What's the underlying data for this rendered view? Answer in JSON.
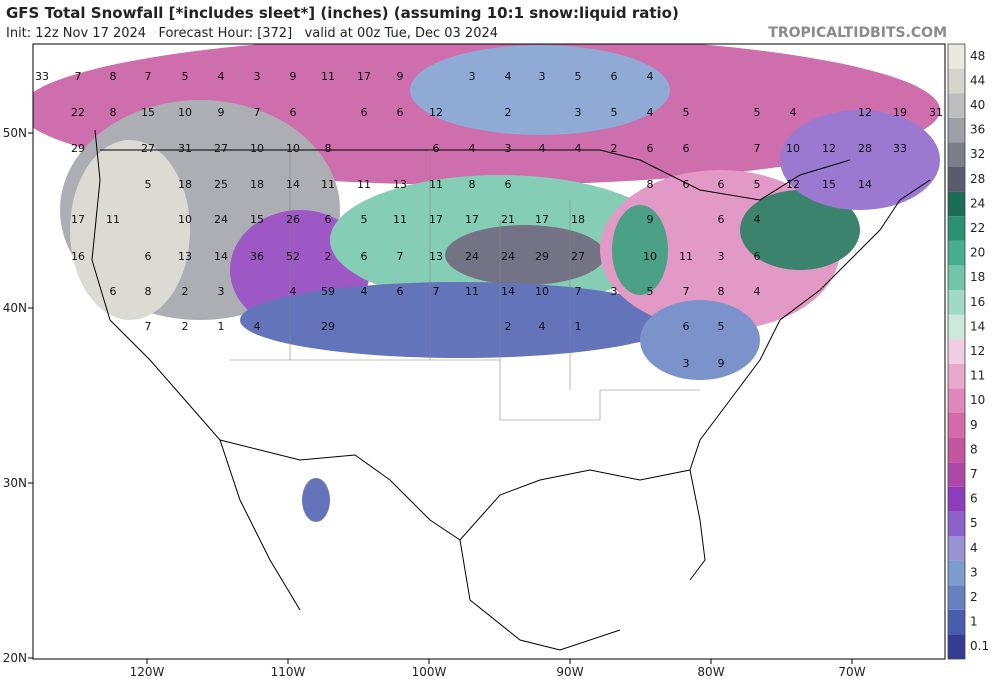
{
  "title": "GFS Total Snowfall [*includes sleet*] (inches) (assuming 10:1 snow:liquid ratio)",
  "subtitle": "Init: 12z Nov 17 2024   Forecast Hour: [372]   valid at 00z Tue, Dec 03 2024",
  "brand": "TROPICALTIDBITS.COM",
  "lat_ticks": [
    {
      "value": 50,
      "label": "50N"
    },
    {
      "value": 40,
      "label": "40N"
    },
    {
      "value": 30,
      "label": "30N"
    },
    {
      "value": 20,
      "label": "20N"
    }
  ],
  "lon_ticks": [
    {
      "value": -120,
      "label": "120W"
    },
    {
      "value": -110,
      "label": "110W"
    },
    {
      "value": -100,
      "label": "100W"
    },
    {
      "value": -90,
      "label": "90W"
    },
    {
      "value": -80,
      "label": "80W"
    },
    {
      "value": -70,
      "label": "70W"
    }
  ],
  "colorbar": {
    "levels": [
      0.1,
      1,
      2,
      3,
      4,
      5,
      6,
      7,
      8,
      9,
      10,
      11,
      12,
      14,
      16,
      18,
      20,
      22,
      24,
      28,
      32,
      36,
      40,
      44,
      48
    ],
    "colors": [
      "#343c94",
      "#4a5cae",
      "#6680c2",
      "#7d9ccf",
      "#9a92d2",
      "#8b62c9",
      "#8d3cbd",
      "#ad48a8",
      "#c6559f",
      "#d46aa9",
      "#df88bb",
      "#e8a8cc",
      "#f1cde1",
      "#cbeadc",
      "#a0d9c5",
      "#72c5a9",
      "#46ae8f",
      "#2b9171",
      "#1b6e55",
      "#5c5a70",
      "#7e7e8b",
      "#9f9fa7",
      "#bdbdc0",
      "#d5d5cd",
      "#e9e9dd"
    ]
  },
  "map_labels": [
    33,
    7,
    8,
    7,
    5,
    4,
    3,
    9,
    11,
    17,
    9,
    3,
    4,
    3,
    5,
    6,
    4,
    22,
    8,
    15,
    10,
    9,
    7,
    6,
    6,
    6,
    12,
    2,
    3,
    5,
    4,
    5,
    5,
    4,
    12,
    19,
    31,
    29,
    27,
    31,
    27,
    10,
    10,
    8,
    6,
    4,
    3,
    4,
    4,
    2,
    6,
    6,
    7,
    10,
    12,
    28,
    33,
    5,
    18,
    25,
    18,
    14,
    11,
    11,
    13,
    11,
    8,
    6,
    8,
    6,
    6,
    5,
    12,
    15,
    14,
    17,
    11,
    10,
    24,
    15,
    26,
    6,
    5,
    11,
    17,
    17,
    21,
    17,
    18,
    9,
    6,
    4,
    16,
    6,
    13,
    14,
    36,
    52,
    2,
    6,
    7,
    13,
    24,
    24,
    29,
    27,
    10,
    11,
    3,
    6,
    6,
    8,
    2,
    3,
    4,
    59,
    4,
    6,
    7,
    11,
    14,
    10,
    7,
    3,
    5,
    7,
    8,
    4,
    7,
    2,
    1,
    4,
    29,
    2,
    4,
    1,
    6,
    5,
    3,
    9
  ]
}
